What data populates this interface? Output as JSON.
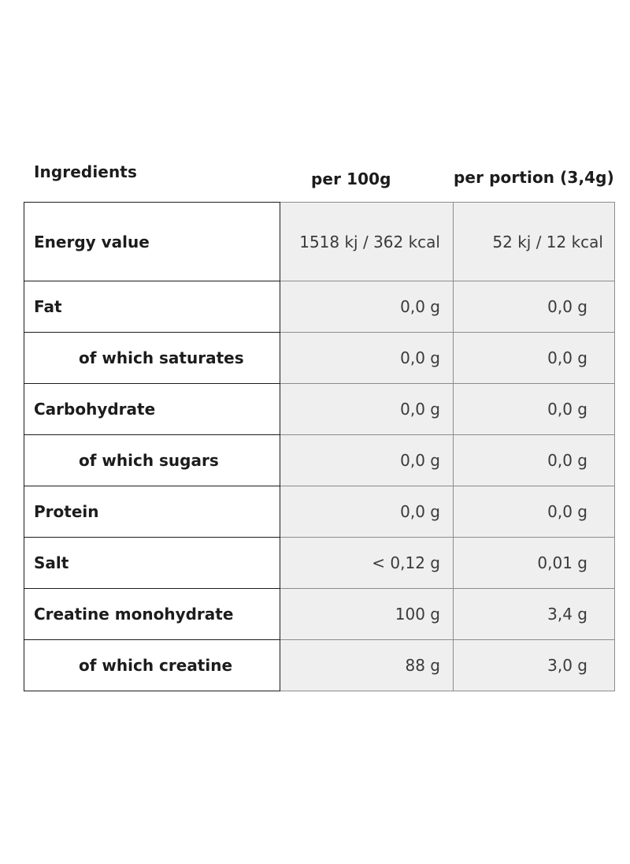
{
  "headers": {
    "ingredients": "Ingredients",
    "per_100g": "per 100g",
    "per_portion": "per portion (3,4g)"
  },
  "rows": [
    {
      "label": "Energy value",
      "per_100g": "1518 kj / 362 kcal",
      "per_portion": "52 kj / 12 kcal"
    },
    {
      "label": "Fat",
      "per_100g": "0,0 g",
      "per_portion": "0,0 g"
    },
    {
      "label": "of which saturates",
      "per_100g": "0,0 g",
      "per_portion": "0,0 g"
    },
    {
      "label": "Carbohydrate",
      "per_100g": "0,0 g",
      "per_portion": "0,0 g"
    },
    {
      "label": "of which sugars",
      "per_100g": "0,0 g",
      "per_portion": "0,0 g"
    },
    {
      "label": "Protein",
      "per_100g": "0,0 g",
      "per_portion": "0,0 g"
    },
    {
      "label": "Salt",
      "per_100g": "< 0,12 g",
      "per_portion": "0,01 g"
    },
    {
      "label": "Creatine monohydrate",
      "per_100g": "100 g",
      "per_portion": "3,4 g"
    },
    {
      "label": "of which creatine",
      "per_100g": "88 g",
      "per_portion": "3,0 g"
    }
  ],
  "colors": {
    "text": "#1c1c1c",
    "value_text": "#3a3a3a",
    "value_cell_bg": "#efefef",
    "border_dark": "#1c1c1c",
    "border_light": "#8c8c8c"
  }
}
